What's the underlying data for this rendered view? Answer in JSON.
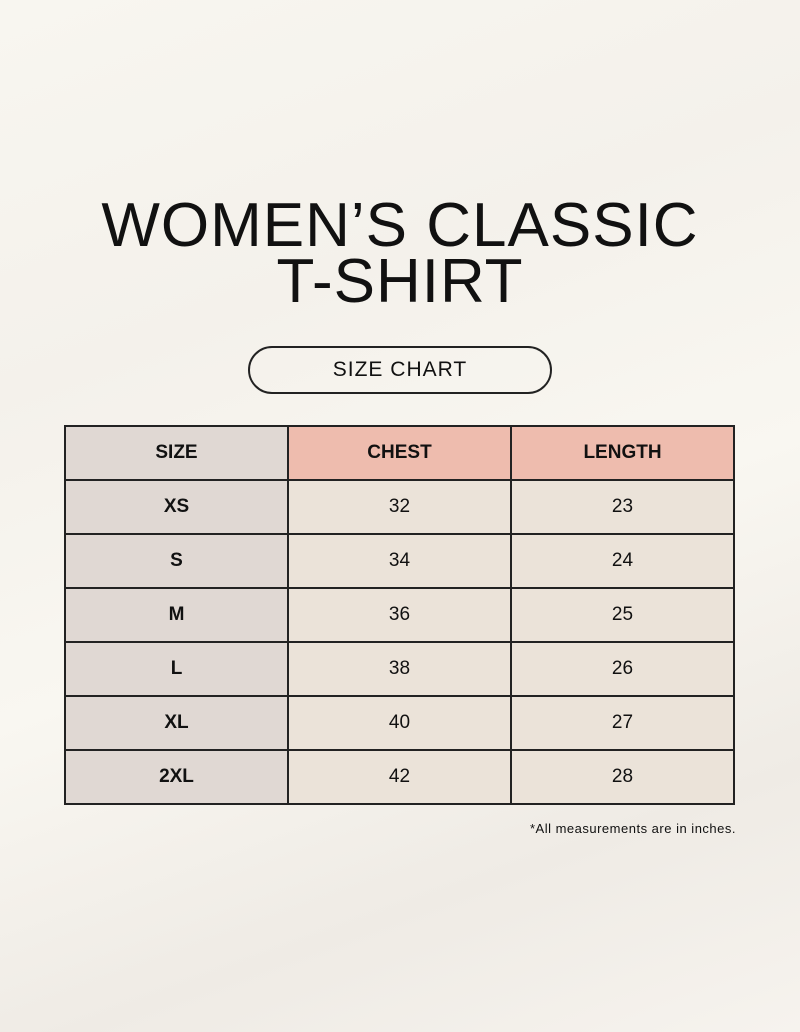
{
  "title_line1": "WOMEN’S CLASSIC",
  "title_line2": "T-SHIRT",
  "subtitle": "SIZE CHART",
  "table": {
    "headers": [
      "SIZE",
      "CHEST",
      "LENGTH"
    ],
    "rows": [
      [
        "XS",
        "32",
        "23"
      ],
      [
        "S",
        "34",
        "24"
      ],
      [
        "M",
        "36",
        "25"
      ],
      [
        "L",
        "38",
        "26"
      ],
      [
        "XL",
        "40",
        "27"
      ],
      [
        "2XL",
        "42",
        "28"
      ]
    ]
  },
  "note": "*All measurements are in inches.",
  "colors": {
    "header_accent": "#eebcae",
    "size_column": "#e0d8d3",
    "cell": "#ebe3d9"
  }
}
